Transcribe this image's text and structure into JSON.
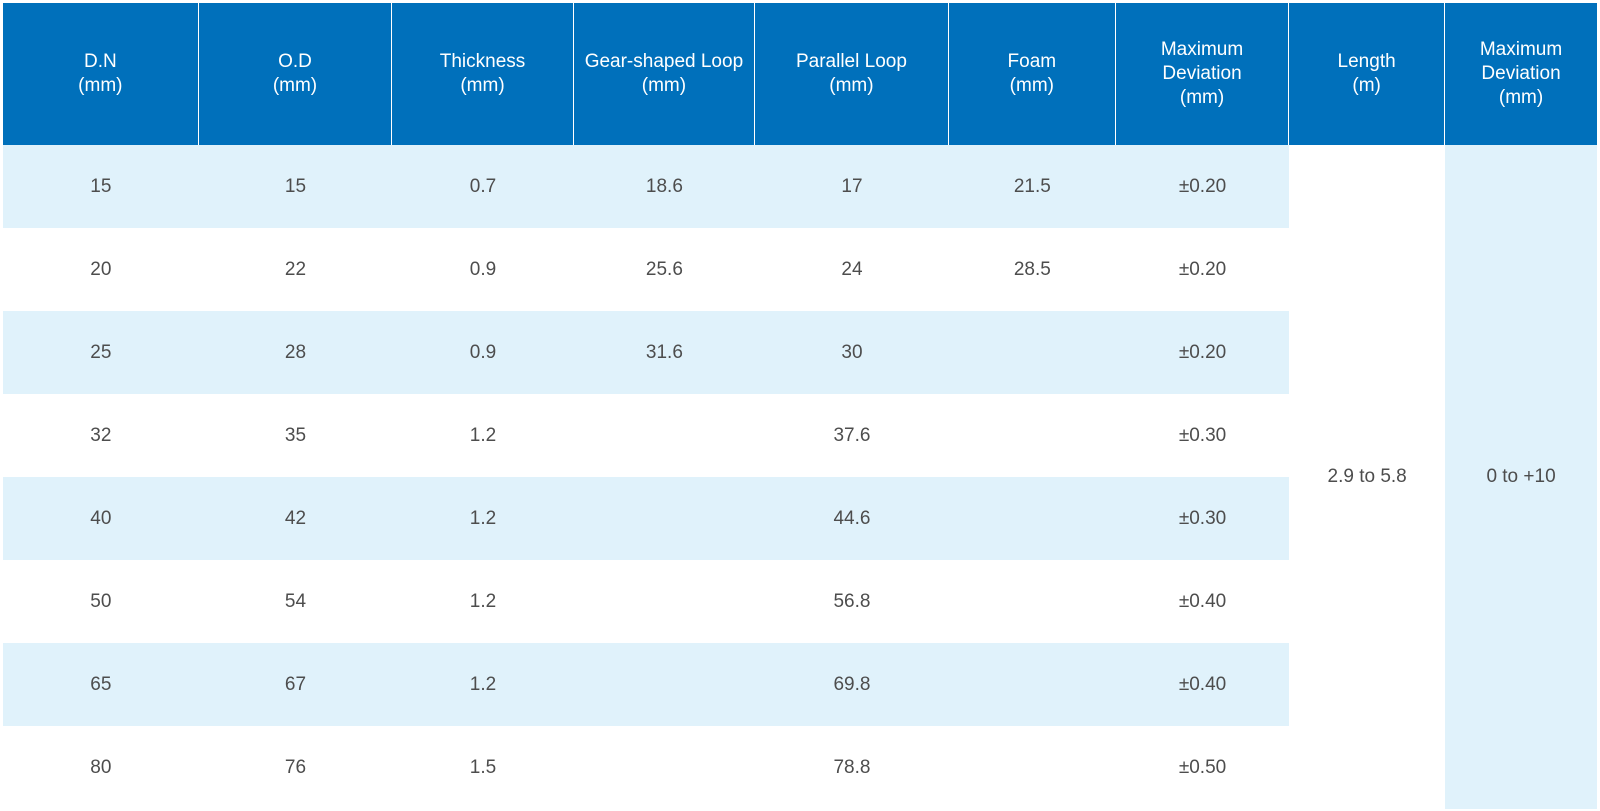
{
  "colors": {
    "header_bg": "#0070bb",
    "header_text": "#ffffff",
    "row_tint": "#e0f2fb",
    "cell_text": "#4d4d4d"
  },
  "headers": [
    "D.N\n(mm)",
    "O.D\n(mm)",
    "Thickness\n(mm)",
    "Gear-shaped Loop\n(mm)",
    "Parallel Loop\n(mm)",
    "Foam\n(mm)",
    "Maximum\nDeviation\n(mm)",
    "Length\n(m)",
    "Maximum\nDeviation\n(mm)"
  ],
  "rows": [
    {
      "dn": "15",
      "od": "15",
      "thickness": "0.7",
      "gear": "18.6",
      "parallel": "17",
      "foam": "21.5",
      "deviation": "±0.20"
    },
    {
      "dn": "20",
      "od": "22",
      "thickness": "0.9",
      "gear": "25.6",
      "parallel": "24",
      "foam": "28.5",
      "deviation": "±0.20"
    },
    {
      "dn": "25",
      "od": "28",
      "thickness": "0.9",
      "gear": "31.6",
      "parallel": "30",
      "foam": "",
      "deviation": "±0.20"
    },
    {
      "dn": "32",
      "od": "35",
      "thickness": "1.2",
      "gear": "",
      "parallel": "37.6",
      "foam": "",
      "deviation": "±0.30"
    },
    {
      "dn": "40",
      "od": "42",
      "thickness": "1.2",
      "gear": "",
      "parallel": "44.6",
      "foam": "",
      "deviation": "±0.30"
    },
    {
      "dn": "50",
      "od": "54",
      "thickness": "1.2",
      "gear": "",
      "parallel": "56.8",
      "foam": "",
      "deviation": "±0.40"
    },
    {
      "dn": "65",
      "od": "67",
      "thickness": "1.2",
      "gear": "",
      "parallel": "69.8",
      "foam": "",
      "deviation": "±0.40"
    },
    {
      "dn": "80",
      "od": "76",
      "thickness": "1.5",
      "gear": "",
      "parallel": "78.8",
      "foam": "",
      "deviation": "±0.50"
    }
  ],
  "length_value": "2.9 to 5.8",
  "length_deviation_value": "0 to +10"
}
